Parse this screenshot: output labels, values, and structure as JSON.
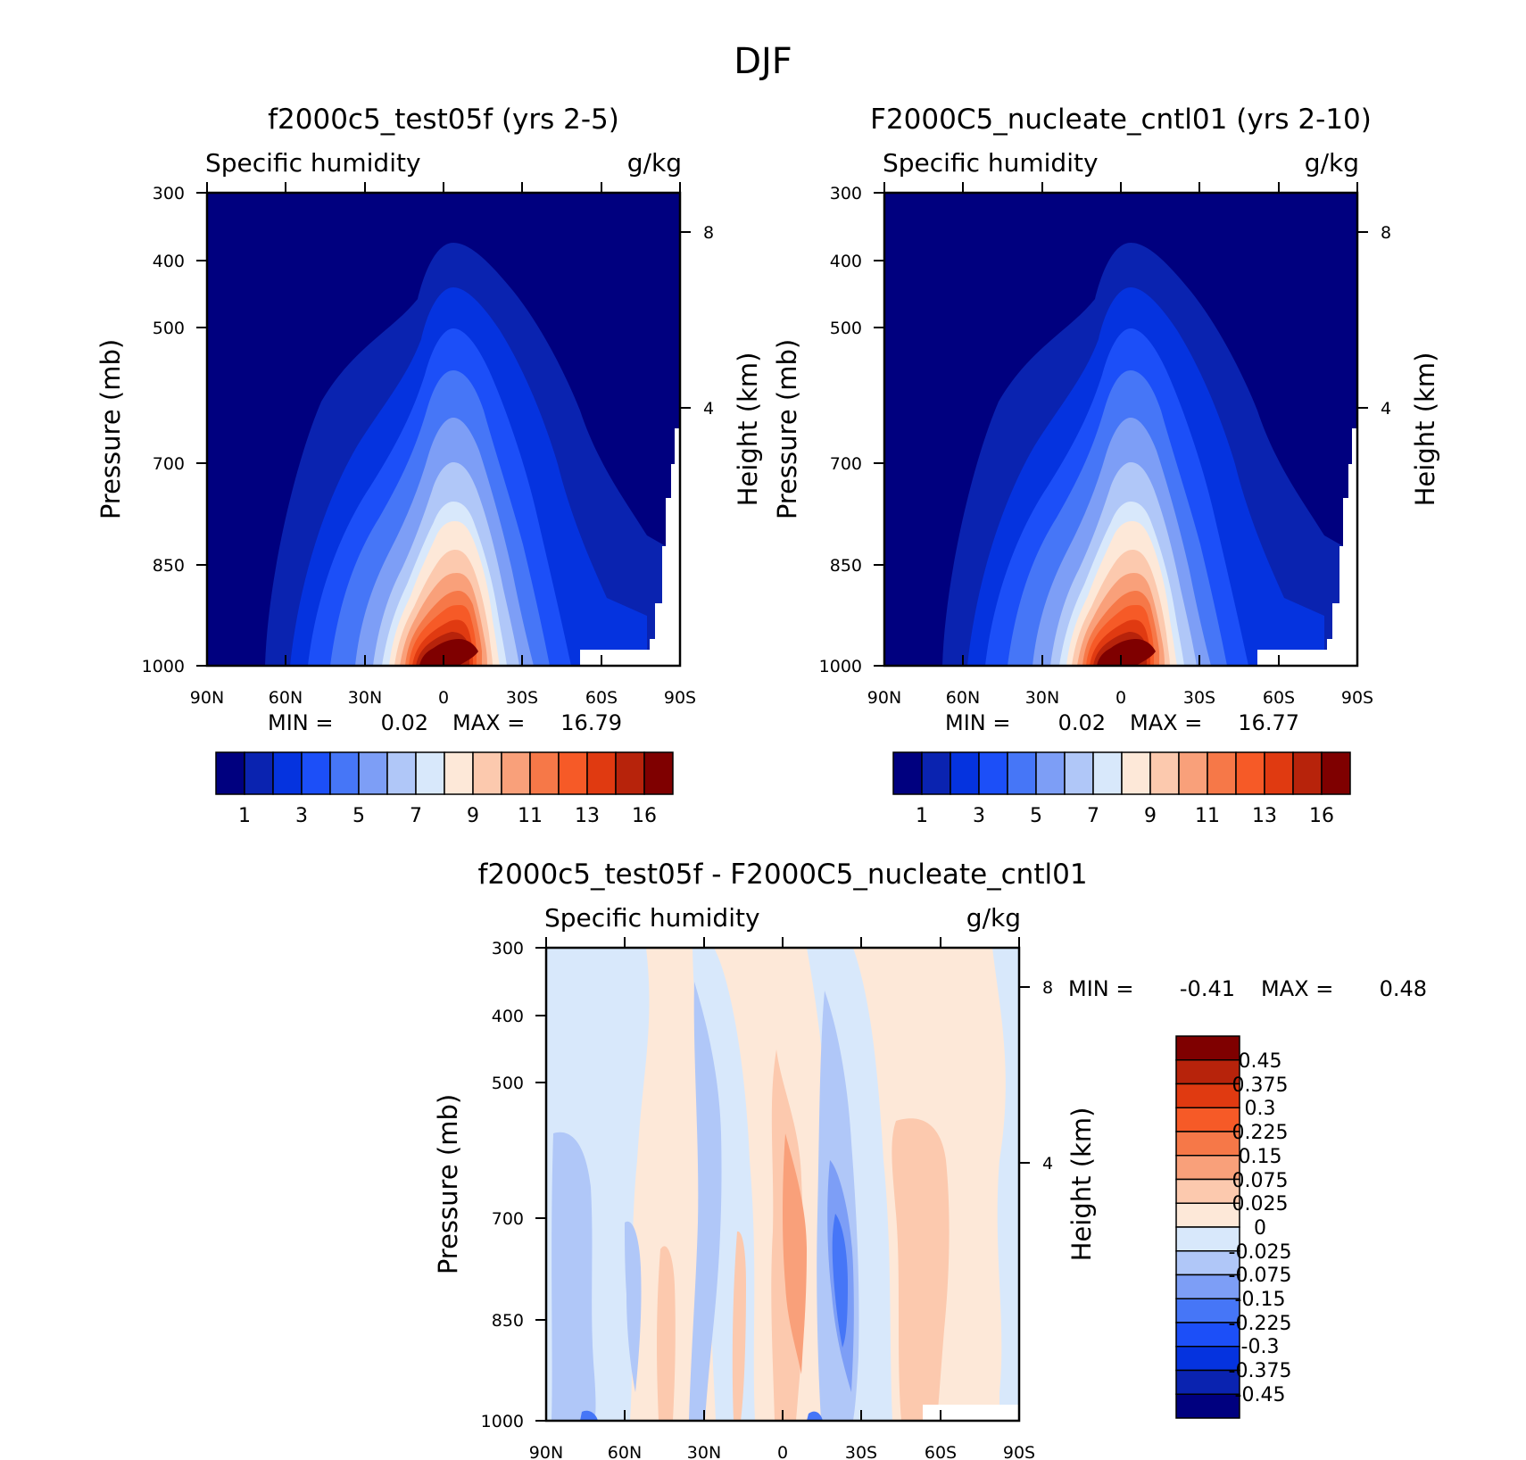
{
  "figure_title": "DJF",
  "chart_data": [
    {
      "type": "heatmap",
      "panel": "left",
      "title": "f2000c5_test05f (yrs 2-5)",
      "variable": "Specific humidity",
      "units": "g/kg",
      "xlabel": "",
      "ylabel": "Pressure (mb)",
      "y2label": "Height (km)",
      "x_ticks": [
        "90N",
        "60N",
        "30N",
        "0",
        "30S",
        "60S",
        "90S"
      ],
      "y_ticks": [
        300,
        400,
        500,
        700,
        850,
        1000
      ],
      "y2_ticks": [
        8,
        4
      ],
      "ylim": [
        300,
        1000
      ],
      "min_label": "MIN =",
      "min": "0.02",
      "max_label": "MAX =",
      "max": "16.79",
      "colorbar_labels": [
        "1",
        "3",
        "5",
        "7",
        "9",
        "11",
        "13",
        "16"
      ],
      "colors": [
        "#00007f",
        "#0a23b0",
        "#0533df",
        "#1c4ff8",
        "#4676f7",
        "#7d9ef6",
        "#b0c7f8",
        "#d8e8fb",
        "#fde8d8",
        "#fcc9ae",
        "#f9a07a",
        "#f67848",
        "#f65a27",
        "#e03a11",
        "#b7230b",
        "#7f0000"
      ]
    },
    {
      "type": "heatmap",
      "panel": "right",
      "title": "F2000C5_nucleate_cntl01 (yrs 2-10)",
      "variable": "Specific humidity",
      "units": "g/kg",
      "xlabel": "",
      "ylabel": "Pressure (mb)",
      "y2label": "Height (km)",
      "x_ticks": [
        "90N",
        "60N",
        "30N",
        "0",
        "30S",
        "60S",
        "90S"
      ],
      "y_ticks": [
        300,
        400,
        500,
        700,
        850,
        1000
      ],
      "y2_ticks": [
        8,
        4
      ],
      "ylim": [
        300,
        1000
      ],
      "min_label": "MIN =",
      "min": "0.02",
      "max_label": "MAX =",
      "max": "16.77",
      "colorbar_labels": [
        "1",
        "3",
        "5",
        "7",
        "9",
        "11",
        "13",
        "16"
      ]
    },
    {
      "type": "heatmap",
      "panel": "difference",
      "title": "f2000c5_test05f - F2000C5_nucleate_cntl01",
      "variable": "Specific humidity",
      "units": "g/kg",
      "xlabel": "",
      "ylabel": "Pressure (mb)",
      "y2label": "Height (km)",
      "x_ticks": [
        "90N",
        "60N",
        "30N",
        "0",
        "30S",
        "60S",
        "90S"
      ],
      "y_ticks": [
        300,
        400,
        500,
        700,
        850,
        1000
      ],
      "y2_ticks": [
        8,
        4
      ],
      "ylim": [
        300,
        1000
      ],
      "min_label": "MIN =",
      "min": "-0.41",
      "max_label": "MAX =",
      "max": "0.48",
      "colorbar_labels": [
        "0.45",
        "0.375",
        "0.3",
        "0.225",
        "0.15",
        "0.075",
        "0.025",
        "0",
        "-0.025",
        "-0.075",
        "-0.15",
        "-0.225",
        "-0.3",
        "-0.375",
        "-0.45"
      ],
      "colors": [
        "#7f0000",
        "#b7230b",
        "#e03a11",
        "#f65a27",
        "#f67848",
        "#f9a07a",
        "#fcc9ae",
        "#fde8d8",
        "#d8e8fb",
        "#b0c7f8",
        "#7d9ef6",
        "#4676f7",
        "#1c4ff8",
        "#0533df",
        "#0a23b0",
        "#00007f"
      ]
    }
  ]
}
